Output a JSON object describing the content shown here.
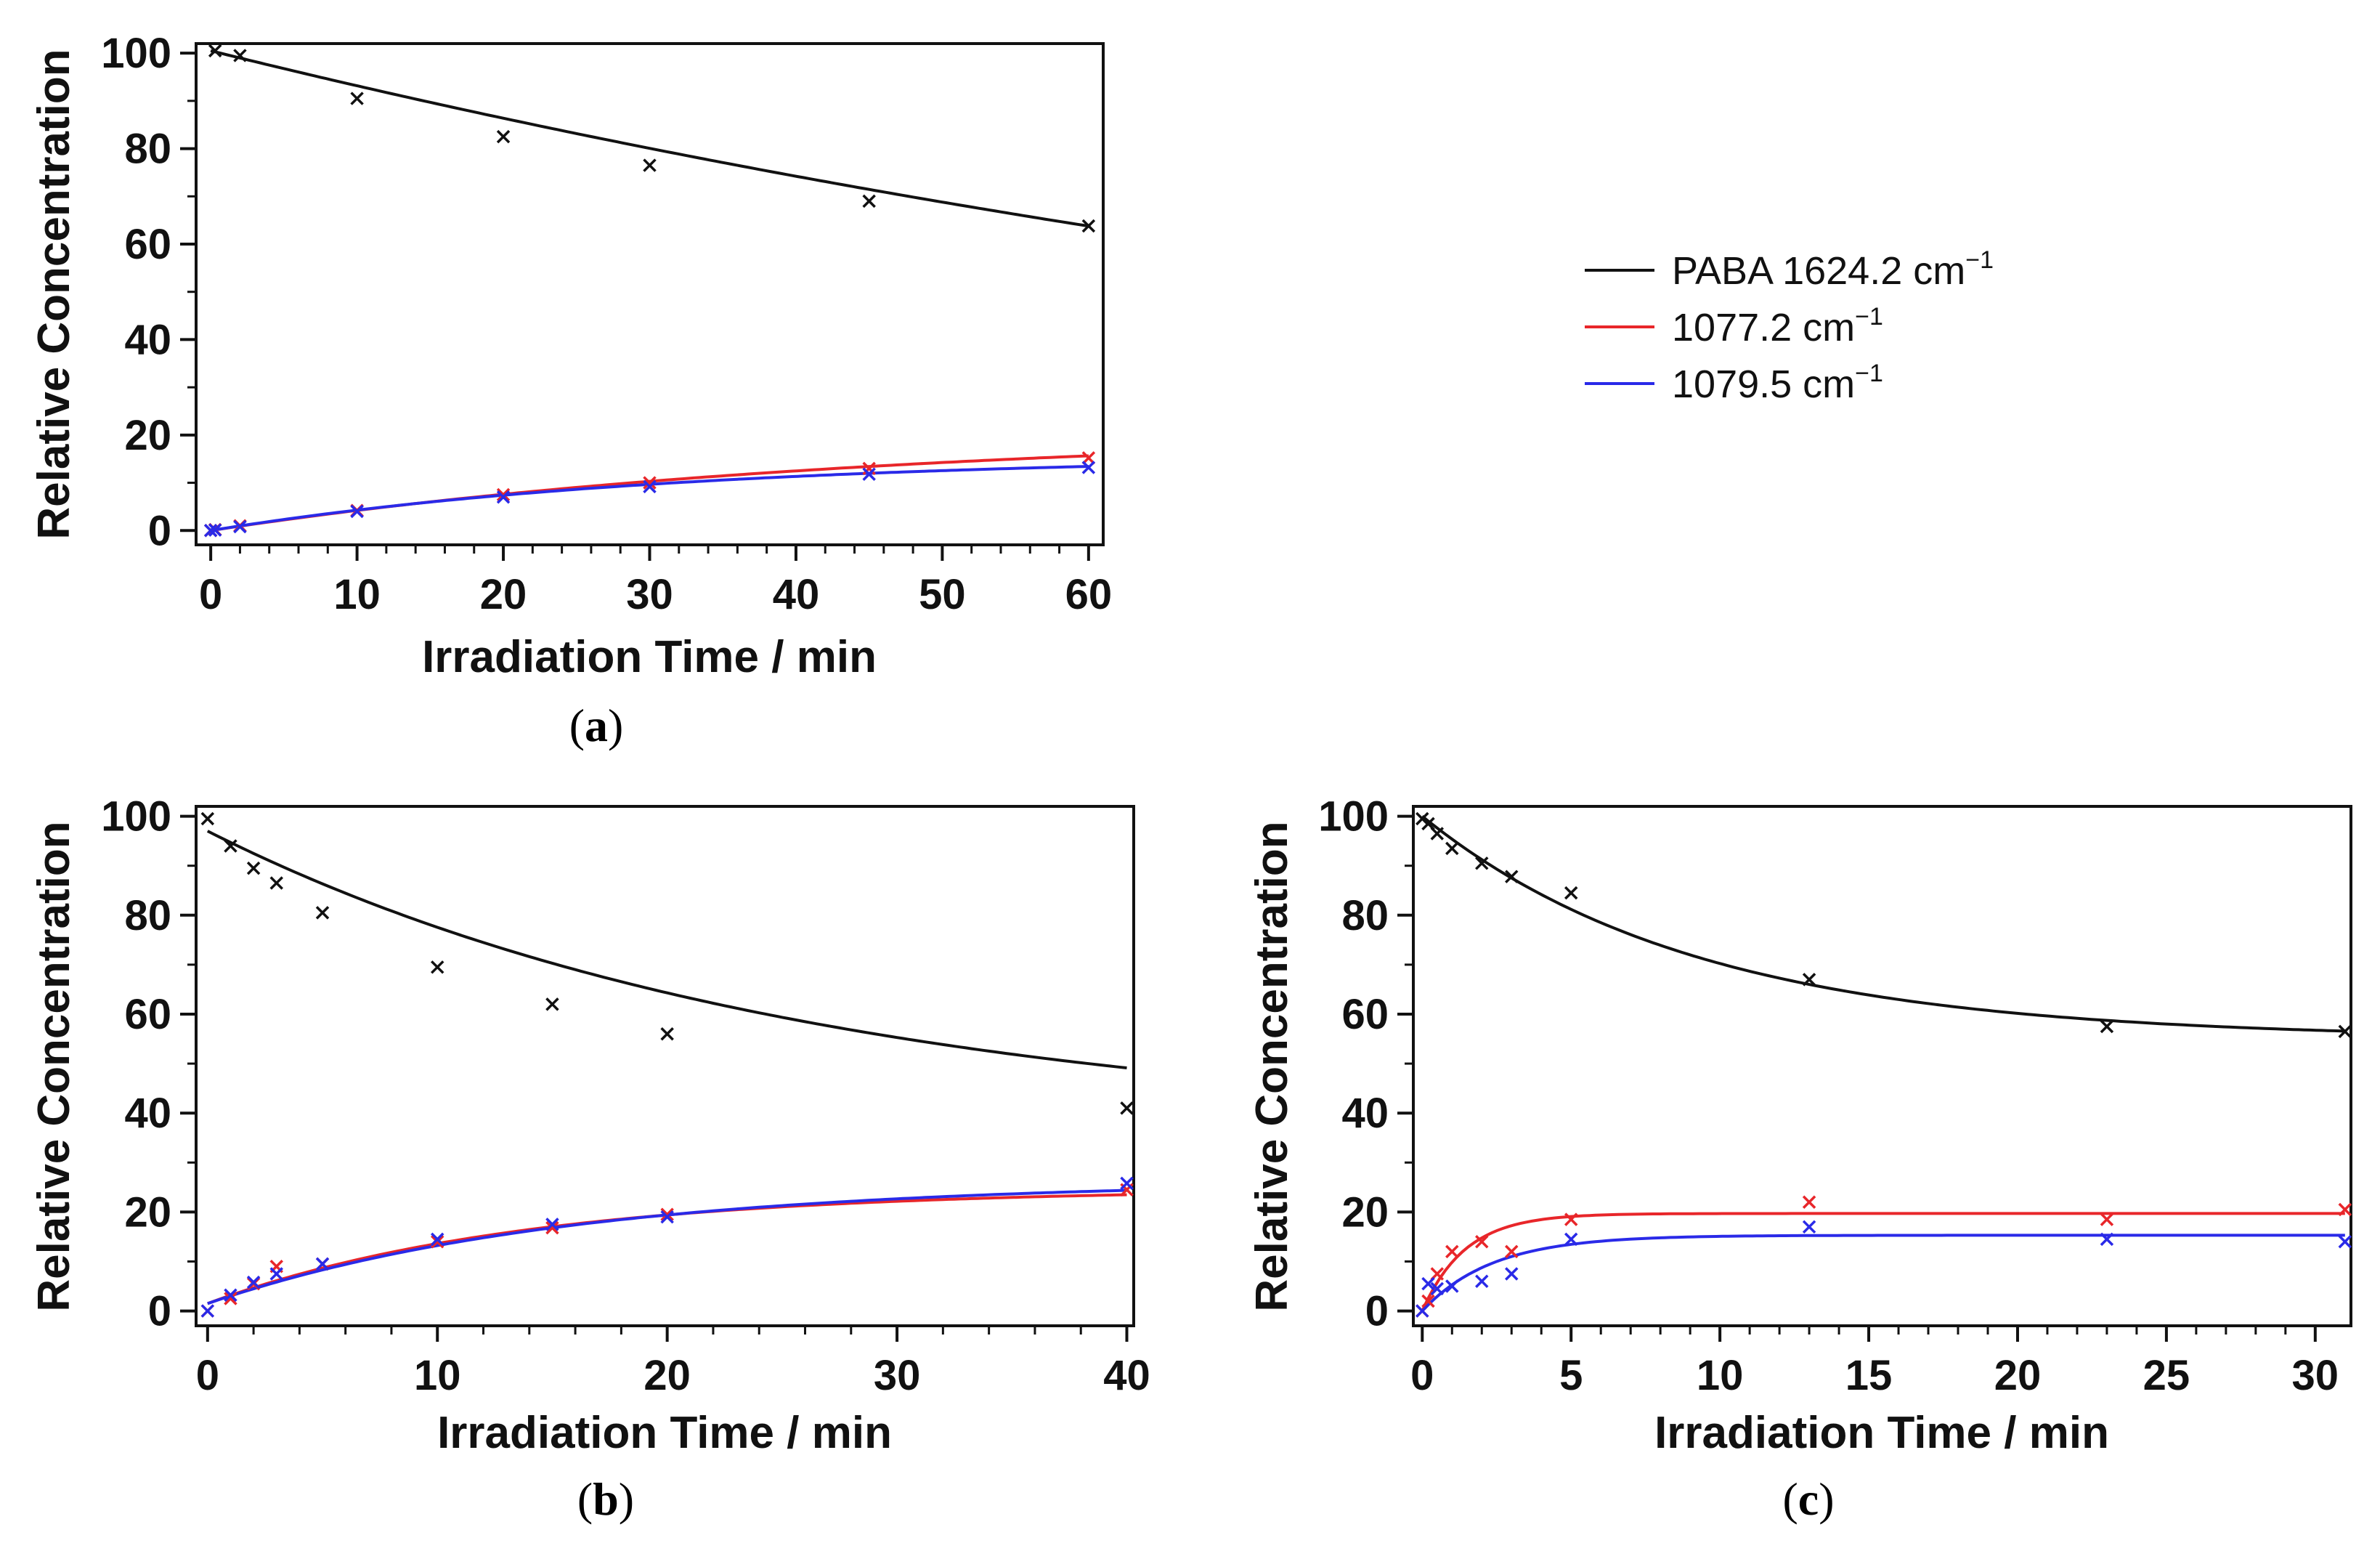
{
  "legend": {
    "entries": [
      {
        "label": "PABA 1624.2 cm",
        "sup": "−1",
        "color": "#111111"
      },
      {
        "label": "1077.2 cm",
        "sup": "−1",
        "color": "#e8262a"
      },
      {
        "label": "1079.5 cm",
        "sup": "−1",
        "color": "#2a2ae8"
      }
    ]
  },
  "chart_data": [
    {
      "id": "a",
      "type": "scatter",
      "panel_label": "a",
      "xlabel": "Irradiation Time / min",
      "ylabel": "Relative Concentration",
      "xlim": [
        -1,
        61
      ],
      "ylim": [
        -3,
        102
      ],
      "xticks": [
        0,
        10,
        20,
        30,
        40,
        50,
        60
      ],
      "yticks": [
        0,
        20,
        40,
        60,
        80,
        100
      ],
      "series": [
        {
          "name": "PABA 1624.2 cm−1",
          "color": "#111111",
          "x": [
            0.3,
            2,
            10,
            20,
            30,
            45,
            60
          ],
          "y": [
            100.5,
            99.5,
            90.5,
            82.5,
            76.5,
            69,
            63.8
          ],
          "fit": {
            "a": 100.5,
            "b": 0.00758
          }
        },
        {
          "name": "1077.2 cm−1",
          "color": "#e8262a",
          "x": [
            0,
            0.3,
            2,
            10,
            20,
            30,
            45,
            60
          ],
          "y": [
            0,
            0.2,
            1,
            4.2,
            7.5,
            10,
            13,
            15.2
          ],
          "fit": {
            "k": 0.0219,
            "amp": 21.4
          }
        },
        {
          "name": "1079.5 cm−1",
          "color": "#2a2ae8",
          "x": [
            0,
            0.3,
            2,
            10,
            20,
            30,
            45,
            60
          ],
          "y": [
            0,
            0.1,
            0.8,
            4,
            7,
            9.2,
            11.8,
            13.2
          ],
          "fit": {
            "k": 0.0316,
            "amp": 15.8
          }
        }
      ]
    },
    {
      "id": "b",
      "type": "scatter",
      "panel_label": "b",
      "xlabel": "Irradiation Time / min",
      "ylabel": "Relative Concentration",
      "xlim": [
        -0.5,
        40.3
      ],
      "ylim": [
        -3,
        102
      ],
      "xticks": [
        0,
        10,
        20,
        30,
        40
      ],
      "yticks": [
        0,
        20,
        40,
        60,
        80,
        100
      ],
      "series": [
        {
          "name": "PABA 1624.2 cm−1",
          "color": "#111111",
          "x": [
            0,
            1,
            2,
            3,
            5,
            10,
            15,
            20,
            40
          ],
          "y": [
            99.5,
            94,
            89.5,
            86.5,
            80.5,
            69.5,
            62,
            56,
            41
          ],
          "fit": {
            "A": 97,
            "B": 61,
            "k": 0.0384
          }
        },
        {
          "name": "1077.2 cm−1",
          "color": "#e8262a",
          "x": [
            0,
            1,
            2,
            3,
            5,
            10,
            15,
            20,
            40
          ],
          "y": [
            0,
            2.5,
            5.5,
            9,
            9.5,
            14,
            16.8,
            19.5,
            24.5
          ],
          "fit": {
            "b0": 1.5,
            "amp": 23.2,
            "k": 0.0739
          }
        },
        {
          "name": "1079.5 cm−1",
          "color": "#2a2ae8",
          "x": [
            0,
            1,
            2,
            3,
            5,
            10,
            15,
            20,
            40
          ],
          "y": [
            0,
            3.2,
            5.8,
            7.5,
            9.5,
            14.5,
            17.5,
            19,
            25.8
          ],
          "fit": {
            "b0": 1.5,
            "amp": 24.8,
            "k": 0.064
          }
        }
      ]
    },
    {
      "id": "c",
      "type": "scatter",
      "panel_label": "c",
      "xlabel": "Irradiation Time / min",
      "ylabel": "Relative Concentration",
      "xlim": [
        -0.3,
        31.2
      ],
      "ylim": [
        -3,
        102
      ],
      "xticks": [
        0,
        5,
        10,
        15,
        20,
        25,
        30
      ],
      "yticks": [
        0,
        20,
        40,
        60,
        80,
        100
      ],
      "series": [
        {
          "name": "PABA 1624.2 cm−1",
          "color": "#111111",
          "x": [
            0,
            0.2,
            0.5,
            1,
            2,
            3,
            5,
            13,
            23,
            31
          ],
          "y": [
            99.5,
            98.5,
            96.5,
            93.5,
            90.5,
            87.8,
            84.5,
            67,
            57.5,
            56.5
          ],
          "fit": {
            "A": 100,
            "B": 45,
            "k": 0.1083
          }
        },
        {
          "name": "1077.2 cm−1",
          "color": "#e8262a",
          "x": [
            0,
            0.2,
            0.5,
            1,
            2,
            3,
            5,
            13,
            23,
            31
          ],
          "y": [
            0,
            2,
            7.5,
            12,
            14,
            12,
            18.5,
            22,
            18.5,
            20.5
          ],
          "fit": {
            "amp": 19.7,
            "k": 0.693
          }
        },
        {
          "name": "1079.5 cm−1",
          "color": "#2a2ae8",
          "x": [
            0,
            0.2,
            0.5,
            1,
            2,
            3,
            5,
            13,
            23,
            31
          ],
          "y": [
            0,
            5.5,
            4.5,
            5,
            6,
            7.5,
            14.5,
            17,
            14.5,
            14
          ],
          "fit": {
            "amp": 15.3,
            "k": 0.4235
          }
        }
      ]
    }
  ]
}
